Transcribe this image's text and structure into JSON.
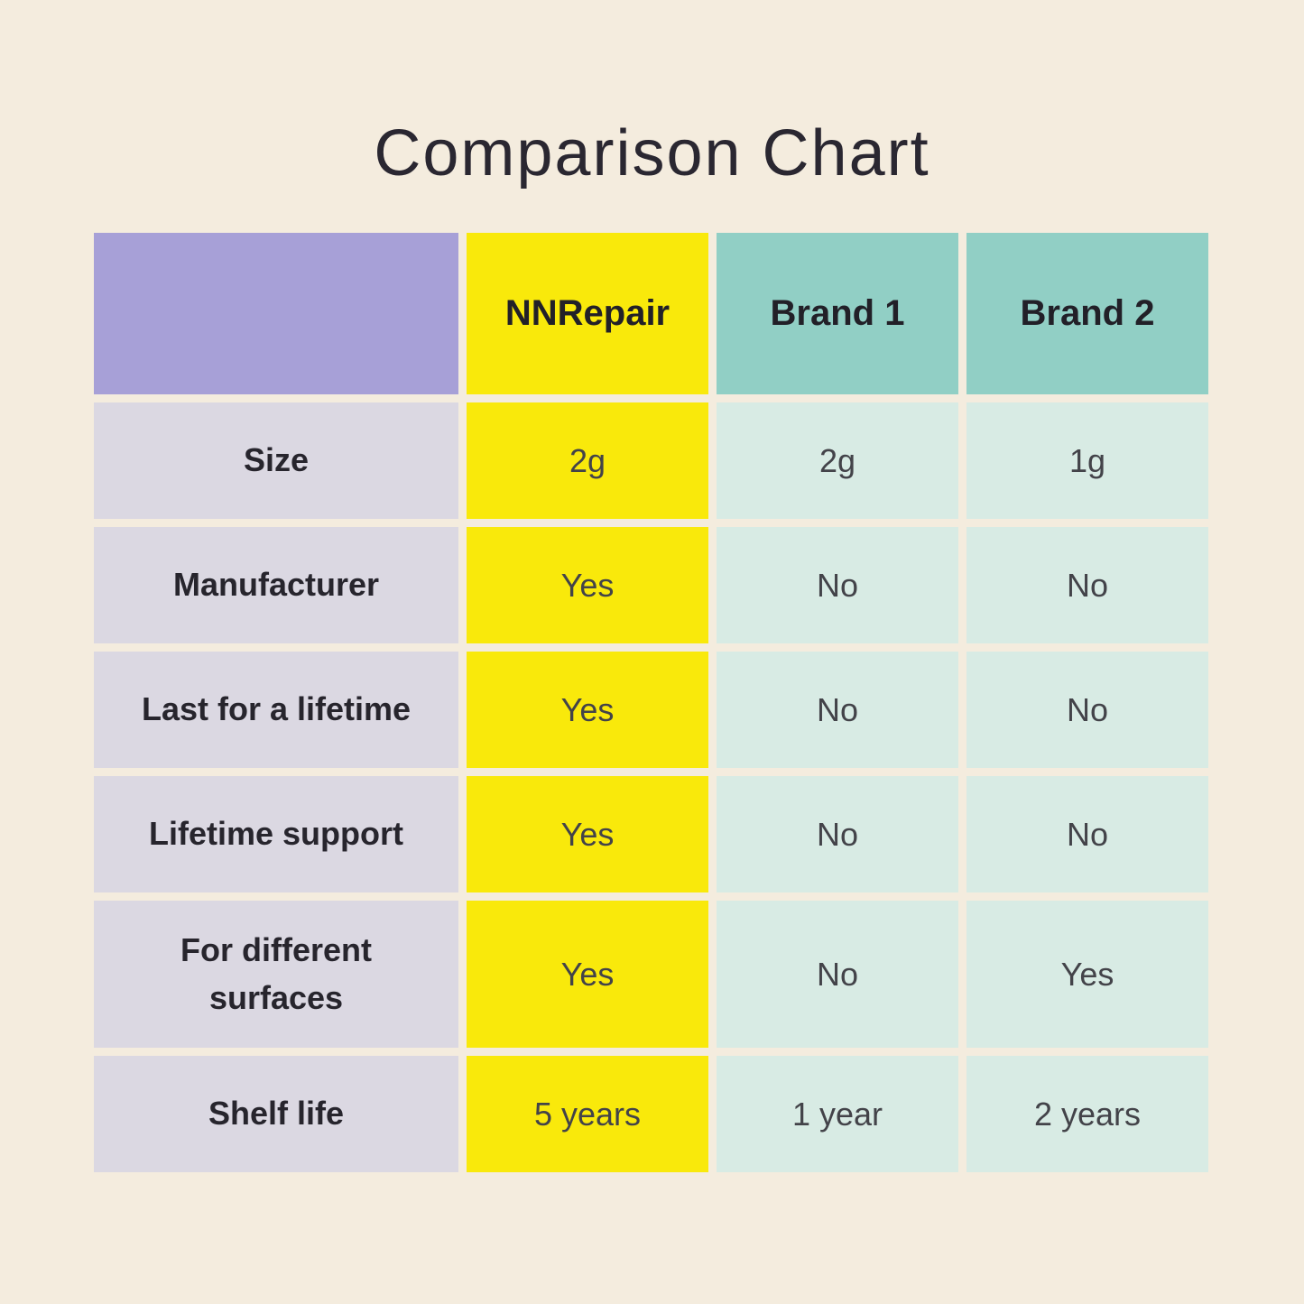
{
  "page": {
    "title": "Comparison Chart"
  },
  "colors": {
    "background": "#f4ecde",
    "corner_header": "#a7a0d7",
    "brand_highlight": "#f9e90b",
    "competitor_header": "#91cfc5",
    "row_label_cell": "#dbd8e2",
    "value_cell": "#d8ebe4",
    "text_dark": "#27252d"
  },
  "chart_data": {
    "type": "table",
    "title": "Comparison Chart",
    "columns": [
      "NNRepair",
      "Brand 1",
      "Brand 2"
    ],
    "row_labels": [
      "Size",
      "Manufacturer",
      "Last for a lifetime",
      "Lifetime support",
      "For different surfaces",
      "Shelf life"
    ],
    "rows": [
      [
        "2g",
        "2g",
        "1g"
      ],
      [
        "Yes",
        "No",
        "No"
      ],
      [
        "Yes",
        "No",
        "No"
      ],
      [
        "Yes",
        "No",
        "No"
      ],
      [
        "Yes",
        "No",
        "Yes"
      ],
      [
        "5 years",
        "1 year",
        "2 years"
      ]
    ],
    "layout": {
      "legend": "none",
      "grid": "separated cells on cream background",
      "highlighted_column": "NNRepair"
    }
  }
}
